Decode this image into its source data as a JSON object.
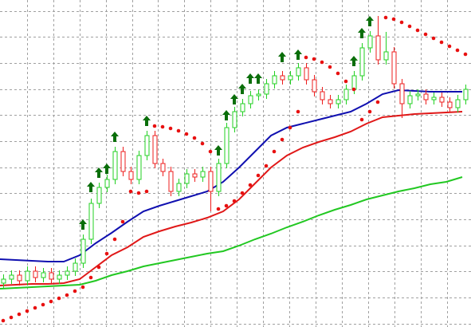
{
  "chart_data": {
    "type": "candlestick",
    "xlim": [
      0,
      591
    ],
    "ylim": [
      0,
      410
    ],
    "xticks": [
      34,
      67,
      100,
      133,
      166,
      198,
      231,
      264,
      297,
      330,
      363,
      396,
      429,
      462,
      495,
      528,
      561
    ],
    "yticks": [
      4,
      37,
      70,
      102,
      135,
      168,
      200,
      233,
      266,
      298,
      331,
      364,
      396
    ],
    "grid": true,
    "grid_color": "#a0a0a0",
    "up_color": "#22d022",
    "down_color": "#ee1c1c",
    "x": [
      4,
      14,
      24,
      34,
      44,
      54,
      64,
      74,
      84,
      94,
      104,
      114,
      124,
      134,
      144,
      154,
      164,
      174,
      184,
      194,
      204,
      214,
      224,
      234,
      244,
      254,
      264,
      274,
      284,
      294,
      304,
      314,
      324,
      334,
      344,
      354,
      364,
      374,
      384,
      394,
      404,
      414,
      424,
      434,
      444,
      454,
      464,
      474,
      484,
      494,
      504,
      514,
      524,
      534,
      544,
      554,
      564,
      574,
      584
    ],
    "open": [
      55,
      60,
      65,
      58,
      70,
      62,
      68,
      60,
      65,
      70,
      80,
      110,
      155,
      175,
      185,
      220,
      195,
      185,
      215,
      240,
      205,
      195,
      170,
      180,
      192,
      188,
      195,
      170,
      205,
      250,
      270,
      280,
      290,
      292,
      305,
      315,
      310,
      315,
      325,
      310,
      295,
      285,
      280,
      285,
      298,
      315,
      350,
      365,
      335,
      345,
      305,
      280,
      290,
      292,
      285,
      288,
      282,
      275,
      285
    ],
    "high": [
      66,
      71,
      71,
      76,
      76,
      74,
      74,
      71,
      76,
      86,
      116,
      161,
      181,
      191,
      226,
      226,
      201,
      221,
      246,
      246,
      211,
      201,
      186,
      198,
      198,
      201,
      201,
      211,
      256,
      276,
      286,
      296,
      298,
      311,
      321,
      321,
      321,
      331,
      331,
      316,
      301,
      291,
      291,
      304,
      321,
      356,
      371,
      390,
      370,
      351,
      311,
      296,
      298,
      298,
      294,
      294,
      288,
      291,
      304
    ],
    "low": [
      49,
      54,
      52,
      52,
      56,
      56,
      54,
      54,
      59,
      64,
      74,
      104,
      149,
      169,
      179,
      189,
      179,
      179,
      209,
      199,
      189,
      164,
      164,
      174,
      182,
      182,
      145,
      164,
      199,
      244,
      264,
      274,
      284,
      286,
      299,
      304,
      304,
      309,
      304,
      289,
      279,
      274,
      274,
      279,
      292,
      309,
      344,
      329,
      329,
      299,
      262,
      274,
      284,
      279,
      279,
      276,
      269,
      269,
      279
    ],
    "close": [
      60,
      65,
      58,
      70,
      62,
      68,
      60,
      65,
      70,
      80,
      110,
      155,
      175,
      185,
      220,
      195,
      185,
      215,
      240,
      205,
      195,
      170,
      180,
      192,
      188,
      195,
      170,
      205,
      250,
      270,
      280,
      290,
      292,
      305,
      315,
      310,
      315,
      325,
      310,
      295,
      285,
      280,
      285,
      298,
      315,
      350,
      365,
      335,
      345,
      305,
      280,
      290,
      292,
      285,
      288,
      282,
      275,
      285,
      298
    ],
    "lines": [
      {
        "color": "#1010b0",
        "x": [
          0,
          20,
          40,
          60,
          80,
          100,
          120,
          140,
          160,
          180,
          200,
          220,
          240,
          260,
          280,
          300,
          320,
          340,
          360,
          380,
          400,
          420,
          440,
          460,
          480,
          500,
          520,
          540,
          560,
          580
        ],
        "values": [
          85,
          84,
          83,
          82,
          82,
          90,
          105,
          118,
          132,
          145,
          152,
          158,
          164,
          170,
          182,
          200,
          220,
          240,
          250,
          255,
          260,
          265,
          270,
          280,
          292,
          297,
          296,
          295,
          295,
          295
        ]
      },
      {
        "color": "#e01818",
        "x": [
          0,
          20,
          40,
          60,
          80,
          100,
          120,
          140,
          160,
          180,
          200,
          220,
          240,
          260,
          280,
          300,
          320,
          340,
          360,
          380,
          400,
          420,
          440,
          460,
          480,
          500,
          520,
          540,
          560,
          580
        ],
        "values": [
          52,
          53,
          54,
          54,
          55,
          60,
          75,
          90,
          100,
          113,
          120,
          126,
          131,
          137,
          145,
          160,
          180,
          200,
          215,
          225,
          232,
          238,
          245,
          255,
          263,
          265,
          267,
          268,
          269,
          270
        ]
      },
      {
        "color": "#22c822",
        "x": [
          0,
          20,
          40,
          60,
          80,
          100,
          120,
          140,
          160,
          180,
          200,
          220,
          240,
          260,
          280,
          300,
          320,
          340,
          360,
          380,
          400,
          420,
          440,
          460,
          480,
          500,
          520,
          540,
          560,
          580
        ],
        "values": [
          48,
          49,
          50,
          51,
          52,
          53,
          58,
          65,
          70,
          76,
          80,
          84,
          88,
          92,
          95,
          102,
          110,
          117,
          125,
          132,
          140,
          147,
          153,
          160,
          165,
          170,
          174,
          179,
          182,
          188
        ]
      }
    ],
    "sar": {
      "color": "#e81010",
      "values": [
        8,
        12,
        16,
        20,
        24,
        28,
        32,
        36,
        40,
        45,
        50,
        62,
        75,
        92,
        110,
        132,
        170,
        168,
        170,
        252,
        251,
        249,
        246,
        242,
        237,
        230,
        220,
        148,
        152,
        158,
        168,
        178,
        190,
        202,
        220,
        235,
        250,
        270,
        338,
        336,
        332,
        326,
        318,
        308,
        298,
        260,
        270,
        282,
        388,
        386,
        382,
        377,
        372,
        367,
        362,
        357,
        352,
        347,
        342
      ]
    },
    "arrows": {
      "color": "#0a6e0a",
      "x": [
        104,
        114,
        124,
        134,
        144,
        184,
        274,
        284,
        294,
        304,
        314,
        324,
        354,
        374,
        444,
        454,
        464
      ],
      "values": [
        135,
        182,
        200,
        205,
        245,
        265,
        228,
        272,
        292,
        305,
        318,
        318,
        345,
        348,
        340,
        375,
        390
      ]
    }
  }
}
